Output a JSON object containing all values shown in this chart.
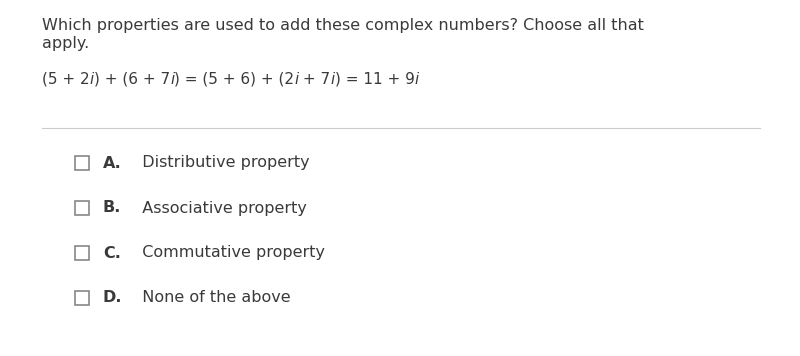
{
  "bg_color": "#ffffff",
  "question_line1": "Which properties are used to add these complex numbers? Choose all that",
  "question_line2": "apply.",
  "equation_parts": [
    {
      "text": "(5 + 2",
      "italic": false
    },
    {
      "text": "i",
      "italic": true
    },
    {
      "text": ") + (6 + 7",
      "italic": false
    },
    {
      "text": "i",
      "italic": true
    },
    {
      "text": ") = (5 + 6) + (2",
      "italic": false
    },
    {
      "text": "i",
      "italic": true
    },
    {
      "text": " + 7",
      "italic": false
    },
    {
      "text": "i",
      "italic": true
    },
    {
      "text": ") = 11 + 9",
      "italic": false
    },
    {
      "text": "i",
      "italic": true
    }
  ],
  "options": [
    {
      "letter": "A.",
      "text": "Distributive property"
    },
    {
      "letter": "B.",
      "text": "Associative property"
    },
    {
      "letter": "C.",
      "text": "Commutative property"
    },
    {
      "letter": "D.",
      "text": "None of the above"
    }
  ],
  "question_fontsize": 11.5,
  "equation_fontsize": 11,
  "option_fontsize": 11.5,
  "text_color": "#3a3a3a",
  "line_color": "#cccccc",
  "checkbox_color": "#888888",
  "checkbox_edge_color": "#888888"
}
